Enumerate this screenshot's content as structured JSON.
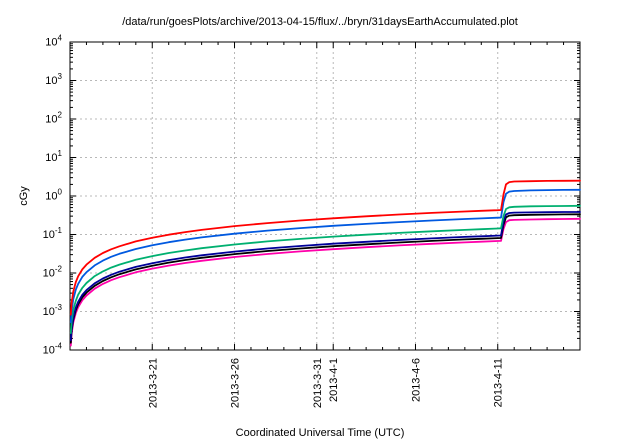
{
  "chart_data": {
    "type": "line",
    "title": "/data/run/goesPlots/archive/2013-04-15/flux/../bryn/31daysEarthAccumulated.plot",
    "xlabel": "Coordinated Universal Time (UTC)",
    "ylabel": "cGy",
    "y_scale": "log",
    "y_tick_base": "10",
    "y_exp_range": [
      -4,
      4
    ],
    "y_tick_exponents": [
      4,
      3,
      2,
      1,
      0,
      -1,
      -2,
      -3,
      -4
    ],
    "x_range_days": [
      0,
      31
    ],
    "x_minor_step_days": 1,
    "grid": true,
    "legend": "none",
    "x_ticks": [
      {
        "day": 5,
        "label": "2013-3-21"
      },
      {
        "day": 10,
        "label": "2013-3-26"
      },
      {
        "day": 15,
        "label": "2013-3-31"
      },
      {
        "day": 16,
        "label": "2013-4-1"
      },
      {
        "day": 21,
        "label": "2013-4-6"
      },
      {
        "day": 26,
        "label": "2013-4-11"
      }
    ],
    "colors": {
      "grid": "#b8b8b8",
      "border": "#000000"
    },
    "series": [
      {
        "name": "magenta",
        "color": "#ff00aa",
        "points": [
          [
            0.05,
            0.00013
          ],
          [
            0.1,
            0.00026
          ],
          [
            0.2,
            0.00052
          ],
          [
            0.35,
            0.00091
          ],
          [
            0.5,
            0.0013
          ],
          [
            0.75,
            0.00195
          ],
          [
            1,
            0.0026
          ],
          [
            1.5,
            0.0039
          ],
          [
            2,
            0.0052
          ],
          [
            2.5,
            0.0065
          ],
          [
            3,
            0.0078
          ],
          [
            4,
            0.0104
          ],
          [
            5,
            0.013
          ],
          [
            6,
            0.0156
          ],
          [
            7,
            0.0182
          ],
          [
            8,
            0.0208
          ],
          [
            10,
            0.026
          ],
          [
            12,
            0.0312
          ],
          [
            14,
            0.0364
          ],
          [
            16,
            0.0416
          ],
          [
            18,
            0.0468
          ],
          [
            20,
            0.052
          ],
          [
            22,
            0.0572
          ],
          [
            24,
            0.0624
          ],
          [
            25,
            0.065
          ],
          [
            26,
            0.0676
          ],
          [
            26.2,
            0.068
          ],
          [
            26.35,
            0.14
          ],
          [
            26.5,
            0.21
          ],
          [
            26.7,
            0.235
          ],
          [
            27,
            0.24
          ],
          [
            28,
            0.245
          ],
          [
            29,
            0.25
          ],
          [
            30,
            0.253
          ],
          [
            31,
            0.255
          ]
        ]
      },
      {
        "name": "black",
        "color": "#000000",
        "points": [
          [
            0.05,
            0.000155
          ],
          [
            0.1,
            0.00031
          ],
          [
            0.2,
            0.00062
          ],
          [
            0.35,
            0.00109
          ],
          [
            0.5,
            0.00155
          ],
          [
            0.75,
            0.00233
          ],
          [
            1,
            0.0031
          ],
          [
            1.5,
            0.00465
          ],
          [
            2,
            0.0062
          ],
          [
            2.5,
            0.00775
          ],
          [
            3,
            0.0093
          ],
          [
            4,
            0.0124
          ],
          [
            5,
            0.0155
          ],
          [
            6,
            0.0186
          ],
          [
            7,
            0.0217
          ],
          [
            8,
            0.0248
          ],
          [
            10,
            0.031
          ],
          [
            12,
            0.0372
          ],
          [
            14,
            0.0434
          ],
          [
            16,
            0.0496
          ],
          [
            18,
            0.0558
          ],
          [
            20,
            0.062
          ],
          [
            22,
            0.0682
          ],
          [
            24,
            0.0744
          ],
          [
            25,
            0.0775
          ],
          [
            26,
            0.0806
          ],
          [
            26.2,
            0.0812
          ],
          [
            26.35,
            0.18
          ],
          [
            26.5,
            0.28
          ],
          [
            26.7,
            0.31
          ],
          [
            27,
            0.318
          ],
          [
            28,
            0.325
          ],
          [
            29,
            0.329
          ],
          [
            30,
            0.332
          ],
          [
            31,
            0.335
          ]
        ]
      },
      {
        "name": "navy",
        "color": "#000099",
        "points": [
          [
            0.05,
            0.00018
          ],
          [
            0.1,
            0.00036
          ],
          [
            0.2,
            0.00072
          ],
          [
            0.35,
            0.00126
          ],
          [
            0.5,
            0.0018
          ],
          [
            0.75,
            0.0027
          ],
          [
            1,
            0.0036
          ],
          [
            1.5,
            0.0054
          ],
          [
            2,
            0.0072
          ],
          [
            2.5,
            0.009
          ],
          [
            3,
            0.0108
          ],
          [
            4,
            0.0144
          ],
          [
            5,
            0.018
          ],
          [
            6,
            0.0216
          ],
          [
            7,
            0.0252
          ],
          [
            8,
            0.0288
          ],
          [
            10,
            0.036
          ],
          [
            12,
            0.0432
          ],
          [
            14,
            0.0504
          ],
          [
            16,
            0.0576
          ],
          [
            18,
            0.0648
          ],
          [
            20,
            0.072
          ],
          [
            22,
            0.0792
          ],
          [
            24,
            0.0864
          ],
          [
            25,
            0.09
          ],
          [
            26,
            0.0936
          ],
          [
            26.2,
            0.0944
          ],
          [
            26.35,
            0.22
          ],
          [
            26.5,
            0.33
          ],
          [
            26.7,
            0.362
          ],
          [
            27,
            0.37
          ],
          [
            28,
            0.376
          ],
          [
            29,
            0.38
          ],
          [
            30,
            0.383
          ],
          [
            31,
            0.385
          ]
        ]
      },
      {
        "name": "green",
        "color": "#00b070",
        "points": [
          [
            0.05,
            0.000275
          ],
          [
            0.1,
            0.00055
          ],
          [
            0.2,
            0.0011
          ],
          [
            0.35,
            0.0019
          ],
          [
            0.5,
            0.00275
          ],
          [
            0.75,
            0.0041
          ],
          [
            1,
            0.0055
          ],
          [
            1.5,
            0.0083
          ],
          [
            2,
            0.011
          ],
          [
            2.5,
            0.0138
          ],
          [
            3,
            0.0165
          ],
          [
            4,
            0.022
          ],
          [
            5,
            0.0275
          ],
          [
            6,
            0.033
          ],
          [
            7,
            0.0385
          ],
          [
            8,
            0.044
          ],
          [
            10,
            0.055
          ],
          [
            12,
            0.066
          ],
          [
            14,
            0.077
          ],
          [
            16,
            0.088
          ],
          [
            18,
            0.099
          ],
          [
            20,
            0.11
          ],
          [
            22,
            0.121
          ],
          [
            24,
            0.132
          ],
          [
            25,
            0.1375
          ],
          [
            26,
            0.143
          ],
          [
            26.2,
            0.145
          ],
          [
            26.35,
            0.3
          ],
          [
            26.5,
            0.46
          ],
          [
            26.7,
            0.51
          ],
          [
            27,
            0.525
          ],
          [
            28,
            0.54
          ],
          [
            29,
            0.545
          ],
          [
            30,
            0.55
          ],
          [
            31,
            0.555
          ]
        ]
      },
      {
        "name": "blue",
        "color": "#0059e0",
        "points": [
          [
            0.05,
            0.000525
          ],
          [
            0.1,
            0.00105
          ],
          [
            0.2,
            0.0021
          ],
          [
            0.35,
            0.0037
          ],
          [
            0.5,
            0.00525
          ],
          [
            0.75,
            0.0079
          ],
          [
            1,
            0.0105
          ],
          [
            1.5,
            0.0158
          ],
          [
            2,
            0.021
          ],
          [
            2.5,
            0.0263
          ],
          [
            3,
            0.0315
          ],
          [
            4,
            0.042
          ],
          [
            5,
            0.0525
          ],
          [
            6,
            0.063
          ],
          [
            7,
            0.0735
          ],
          [
            8,
            0.084
          ],
          [
            10,
            0.105
          ],
          [
            12,
            0.126
          ],
          [
            14,
            0.147
          ],
          [
            16,
            0.168
          ],
          [
            18,
            0.189
          ],
          [
            20,
            0.21
          ],
          [
            22,
            0.231
          ],
          [
            24,
            0.252
          ],
          [
            25,
            0.2625
          ],
          [
            26,
            0.273
          ],
          [
            26.2,
            0.275
          ],
          [
            26.35,
            0.7
          ],
          [
            26.5,
            1.15
          ],
          [
            26.7,
            1.3
          ],
          [
            27,
            1.35
          ],
          [
            28,
            1.4
          ],
          [
            29,
            1.42
          ],
          [
            30,
            1.44
          ],
          [
            31,
            1.45
          ]
        ]
      },
      {
        "name": "red",
        "color": "#ff0000",
        "points": [
          [
            0.05,
            0.000825
          ],
          [
            0.1,
            0.00165
          ],
          [
            0.2,
            0.0033
          ],
          [
            0.35,
            0.0058
          ],
          [
            0.5,
            0.00825
          ],
          [
            0.75,
            0.0124
          ],
          [
            1,
            0.0165
          ],
          [
            1.5,
            0.0248
          ],
          [
            2,
            0.033
          ],
          [
            2.5,
            0.0413
          ],
          [
            3,
            0.0495
          ],
          [
            4,
            0.066
          ],
          [
            5,
            0.0825
          ],
          [
            6,
            0.099
          ],
          [
            7,
            0.1155
          ],
          [
            8,
            0.132
          ],
          [
            10,
            0.165
          ],
          [
            12,
            0.198
          ],
          [
            14,
            0.231
          ],
          [
            16,
            0.264
          ],
          [
            18,
            0.297
          ],
          [
            20,
            0.33
          ],
          [
            22,
            0.363
          ],
          [
            24,
            0.396
          ],
          [
            25,
            0.4125
          ],
          [
            26,
            0.429
          ],
          [
            26.2,
            0.432
          ],
          [
            26.35,
            1.1
          ],
          [
            26.5,
            2.0
          ],
          [
            26.7,
            2.3
          ],
          [
            27,
            2.38
          ],
          [
            28,
            2.43
          ],
          [
            29,
            2.46
          ],
          [
            30,
            2.48
          ],
          [
            31,
            2.5
          ]
        ]
      }
    ]
  }
}
